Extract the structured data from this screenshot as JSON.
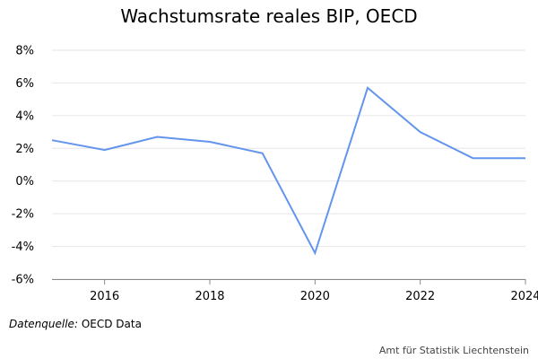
{
  "title": "Wachstumsrate reales BIP, OECD",
  "source": {
    "label": "Datenquelle:",
    "value": "OECD Data"
  },
  "credit": "Amt für Statistik Liechtenstein",
  "chart_data": {
    "type": "line",
    "title": "Wachstumsrate reales BIP, OECD",
    "xlabel": "",
    "ylabel": "",
    "x": [
      2015,
      2016,
      2017,
      2018,
      2019,
      2020,
      2021,
      2022,
      2023,
      2024
    ],
    "series": [
      {
        "values": [
          2.5,
          1.9,
          2.7,
          2.4,
          1.7,
          -4.4,
          5.7,
          3.0,
          1.4,
          1.4
        ]
      }
    ],
    "xlim": [
      2015,
      2024
    ],
    "ylim": [
      -6,
      8
    ],
    "x_ticks": [
      "2016",
      "2018",
      "2020",
      "2022",
      "2024"
    ],
    "y_ticks": [
      "8%",
      "6%",
      "4%",
      "2%",
      "0%",
      "-2%",
      "-4%",
      "-6%"
    ],
    "grid": "horizontal",
    "line_color": "#6495ED",
    "grid_color": "#e6e6e6",
    "axis_color": "#888888"
  }
}
